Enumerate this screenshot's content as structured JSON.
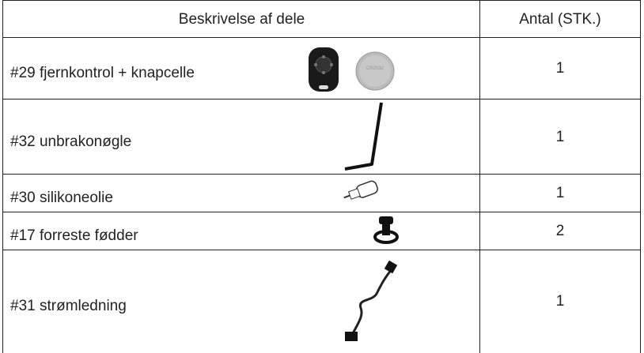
{
  "table": {
    "header": [
      "Beskrivelse af dele",
      "Antal (STK.)"
    ],
    "rows": [
      [
        "#29 fjernkontrol + knapcelle",
        1
      ],
      [
        "#32 unbrakonøgle",
        1
      ],
      [
        "#30 silikoneolie",
        1
      ],
      [
        "#17 forreste fødder",
        2
      ],
      [
        "#31 strømledning",
        1
      ]
    ]
  }
}
